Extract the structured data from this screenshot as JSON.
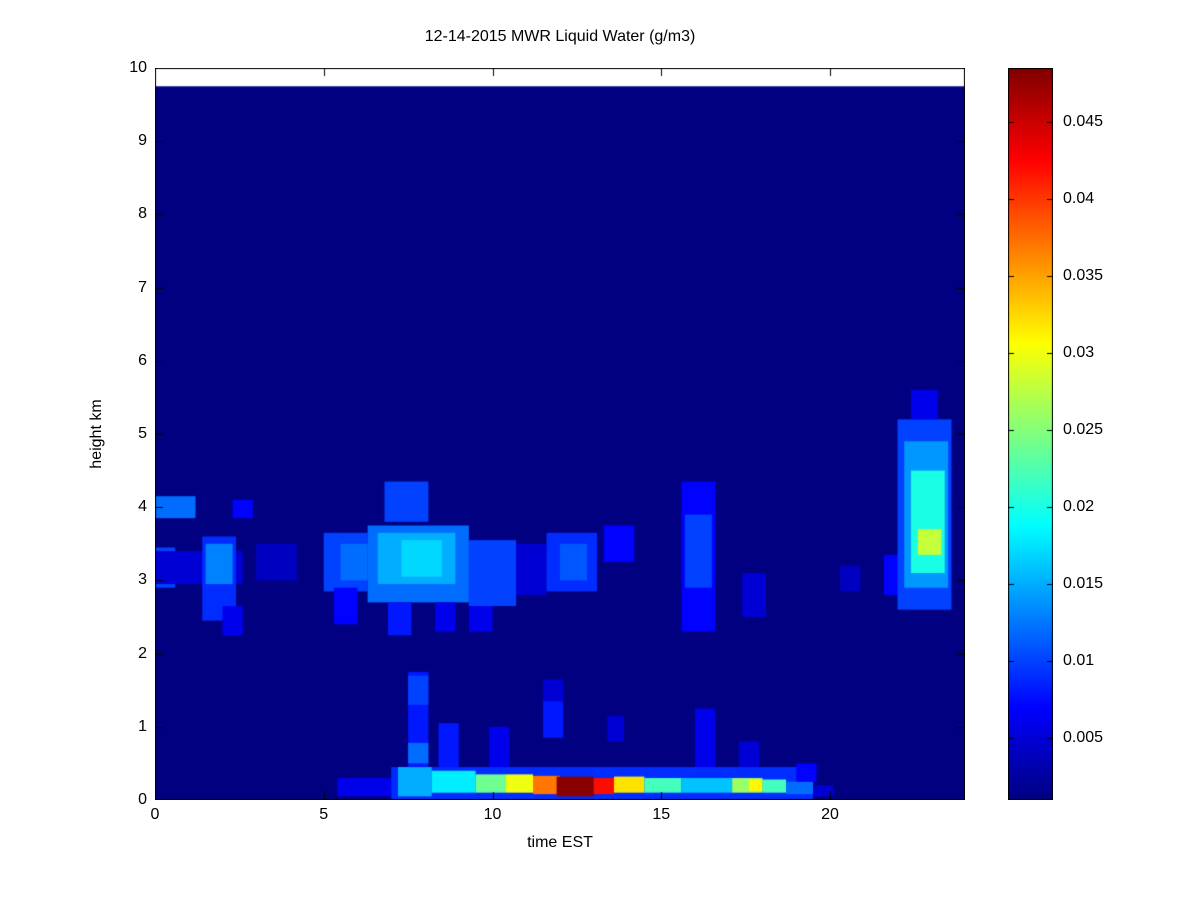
{
  "chart_data": {
    "type": "heatmap",
    "title": "12-14-2015 MWR Liquid Water (g/m3)",
    "xlabel": "time EST",
    "ylabel": "height km",
    "xlim": [
      0,
      24
    ],
    "ylim": [
      0,
      10
    ],
    "data_top": 9.75,
    "x_ticks": [
      0,
      5,
      10,
      15,
      20
    ],
    "x_tick_labels": [
      "0",
      "5",
      "10",
      "15",
      "20"
    ],
    "y_ticks": [
      0,
      1,
      2,
      3,
      4,
      5,
      6,
      7,
      8,
      9,
      10
    ],
    "y_tick_labels": [
      "0",
      "1",
      "2",
      "3",
      "4",
      "5",
      "6",
      "7",
      "8",
      "9",
      "10"
    ],
    "colormap": "jet",
    "vmin": 0.001,
    "vmax": 0.0485,
    "background_value": 0.001,
    "colorbar_ticks": [
      0.005,
      0.01,
      0.015,
      0.02,
      0.025,
      0.03,
      0.035,
      0.04,
      0.045
    ],
    "colorbar_tick_labels": [
      "0.005",
      "0.01",
      "0.015",
      "0.02",
      "0.025",
      "0.03",
      "0.035",
      "0.04",
      "0.045"
    ],
    "cells": [
      [
        0.0,
        1.2,
        3.85,
        4.15,
        0.012
      ],
      [
        0.0,
        0.6,
        2.9,
        3.45,
        0.01
      ],
      [
        0.0,
        2.6,
        2.95,
        3.4,
        0.005
      ],
      [
        1.4,
        2.4,
        2.45,
        3.6,
        0.009
      ],
      [
        1.5,
        2.3,
        2.95,
        3.5,
        0.013
      ],
      [
        2.3,
        2.9,
        3.85,
        4.1,
        0.007
      ],
      [
        2.0,
        2.6,
        2.25,
        2.65,
        0.006
      ],
      [
        3.0,
        4.2,
        3.0,
        3.5,
        0.004
      ],
      [
        5.0,
        6.3,
        2.85,
        3.65,
        0.01
      ],
      [
        5.3,
        6.0,
        2.4,
        2.9,
        0.007
      ],
      [
        5.5,
        6.3,
        3.0,
        3.5,
        0.012
      ],
      [
        6.3,
        9.3,
        2.7,
        3.75,
        0.012
      ],
      [
        6.6,
        8.9,
        2.95,
        3.65,
        0.015
      ],
      [
        7.3,
        8.5,
        3.05,
        3.55,
        0.017
      ],
      [
        6.8,
        8.1,
        3.8,
        4.35,
        0.01
      ],
      [
        6.9,
        7.6,
        2.25,
        2.7,
        0.008
      ],
      [
        8.3,
        8.9,
        2.3,
        2.7,
        0.006
      ],
      [
        9.3,
        10.7,
        2.65,
        3.55,
        0.01
      ],
      [
        9.3,
        10.0,
        2.3,
        2.65,
        0.006
      ],
      [
        10.7,
        11.6,
        2.8,
        3.5,
        0.005
      ],
      [
        11.6,
        13.1,
        2.85,
        3.65,
        0.009
      ],
      [
        12.0,
        12.8,
        3.0,
        3.5,
        0.011
      ],
      [
        13.3,
        14.2,
        3.25,
        3.75,
        0.007
      ],
      [
        15.6,
        16.6,
        2.3,
        4.35,
        0.007
      ],
      [
        15.7,
        16.5,
        2.9,
        3.9,
        0.01
      ],
      [
        17.4,
        18.1,
        2.5,
        3.1,
        0.005
      ],
      [
        20.3,
        20.9,
        2.85,
        3.2,
        0.004
      ],
      [
        21.6,
        22.1,
        2.8,
        3.35,
        0.007
      ],
      [
        22.0,
        23.6,
        2.6,
        5.2,
        0.01
      ],
      [
        22.2,
        23.5,
        2.9,
        4.9,
        0.014
      ],
      [
        22.4,
        23.4,
        3.1,
        4.5,
        0.02
      ],
      [
        22.6,
        23.3,
        3.35,
        3.7,
        0.028
      ],
      [
        22.4,
        23.2,
        5.2,
        5.6,
        0.006
      ],
      [
        5.4,
        7.0,
        0.05,
        0.3,
        0.006
      ],
      [
        7.0,
        19.5,
        0.0,
        0.45,
        0.009
      ],
      [
        7.2,
        8.2,
        0.05,
        0.45,
        0.015
      ],
      [
        8.2,
        9.5,
        0.1,
        0.4,
        0.018
      ],
      [
        9.5,
        10.4,
        0.1,
        0.35,
        0.024
      ],
      [
        10.4,
        11.2,
        0.1,
        0.35,
        0.03
      ],
      [
        11.2,
        12.0,
        0.08,
        0.33,
        0.037
      ],
      [
        11.9,
        13.0,
        0.05,
        0.32,
        0.048
      ],
      [
        13.0,
        13.6,
        0.08,
        0.3,
        0.042
      ],
      [
        13.6,
        14.5,
        0.1,
        0.32,
        0.032
      ],
      [
        14.5,
        15.6,
        0.1,
        0.3,
        0.022
      ],
      [
        15.6,
        17.1,
        0.1,
        0.3,
        0.016
      ],
      [
        17.1,
        18.0,
        0.1,
        0.3,
        0.026
      ],
      [
        17.6,
        18.0,
        0.12,
        0.28,
        0.031
      ],
      [
        18.0,
        18.7,
        0.1,
        0.28,
        0.022
      ],
      [
        18.7,
        19.5,
        0.08,
        0.25,
        0.012
      ],
      [
        19.5,
        20.1,
        0.05,
        0.2,
        0.005
      ],
      [
        7.5,
        8.1,
        0.45,
        1.75,
        0.008
      ],
      [
        7.5,
        8.1,
        0.5,
        0.78,
        0.012
      ],
      [
        7.5,
        8.1,
        1.3,
        1.7,
        0.01
      ],
      [
        8.4,
        9.0,
        0.45,
        1.05,
        0.008
      ],
      [
        9.9,
        10.5,
        0.45,
        1.0,
        0.006
      ],
      [
        11.5,
        12.1,
        0.85,
        1.35,
        0.008
      ],
      [
        11.5,
        12.1,
        1.35,
        1.65,
        0.005
      ],
      [
        13.4,
        13.9,
        0.8,
        1.15,
        0.005
      ],
      [
        16.0,
        16.6,
        0.45,
        1.25,
        0.006
      ],
      [
        17.3,
        17.9,
        0.45,
        0.8,
        0.005
      ],
      [
        19.0,
        19.6,
        0.25,
        0.5,
        0.007
      ]
    ]
  }
}
